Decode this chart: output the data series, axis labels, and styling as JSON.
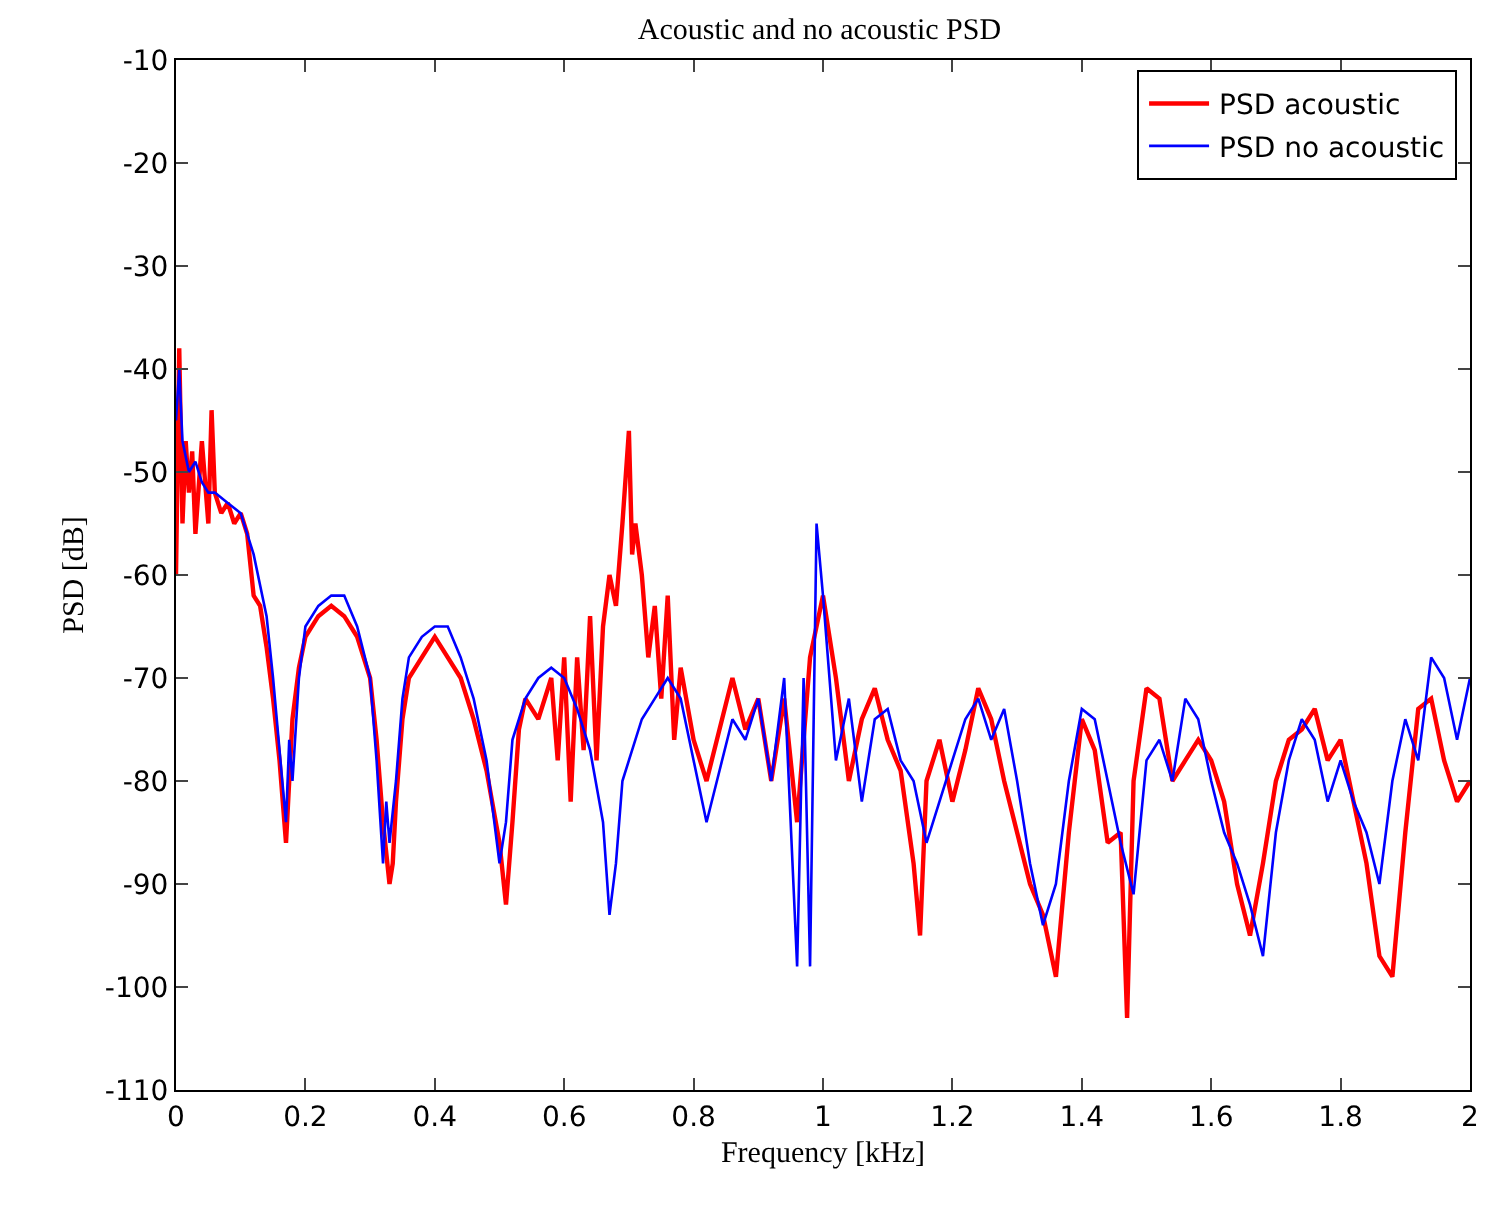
{
  "chart_data": {
    "type": "line",
    "title": "Acoustic and no acoustic PSD",
    "xlabel": "Frequency [kHz]",
    "ylabel": "PSD [dB]",
    "xlim": [
      0,
      2
    ],
    "xticks": [
      0,
      0.2,
      0.4,
      0.6,
      0.8,
      1,
      1.2,
      1.4,
      1.6,
      1.8,
      2
    ],
    "ylim": [
      -110,
      -10
    ],
    "yticks": [
      -110,
      -100,
      -90,
      -80,
      -70,
      -60,
      -50,
      -40,
      -30,
      -20,
      -10
    ],
    "legend": "top right",
    "line_style": "solid",
    "marker": "none",
    "series": [
      {
        "name": "PSD acoustic",
        "color": "#ff0000",
        "x": [
          0,
          0.005,
          0.01,
          0.015,
          0.02,
          0.025,
          0.03,
          0.04,
          0.05,
          0.055,
          0.06,
          0.07,
          0.08,
          0.09,
          0.1,
          0.11,
          0.12,
          0.13,
          0.14,
          0.15,
          0.16,
          0.17,
          0.175,
          0.18,
          0.19,
          0.2,
          0.22,
          0.24,
          0.26,
          0.28,
          0.3,
          0.31,
          0.32,
          0.33,
          0.335,
          0.34,
          0.35,
          0.36,
          0.38,
          0.4,
          0.42,
          0.44,
          0.46,
          0.48,
          0.5,
          0.51,
          0.52,
          0.53,
          0.54,
          0.56,
          0.58,
          0.59,
          0.6,
          0.61,
          0.62,
          0.63,
          0.64,
          0.65,
          0.66,
          0.67,
          0.68,
          0.69,
          0.7,
          0.705,
          0.71,
          0.72,
          0.73,
          0.74,
          0.75,
          0.76,
          0.77,
          0.78,
          0.8,
          0.82,
          0.84,
          0.86,
          0.88,
          0.9,
          0.92,
          0.94,
          0.96,
          0.98,
          1.0,
          1.02,
          1.04,
          1.06,
          1.08,
          1.1,
          1.12,
          1.14,
          1.15,
          1.16,
          1.18,
          1.2,
          1.22,
          1.24,
          1.26,
          1.28,
          1.3,
          1.32,
          1.34,
          1.36,
          1.38,
          1.4,
          1.42,
          1.44,
          1.46,
          1.47,
          1.48,
          1.5,
          1.52,
          1.54,
          1.56,
          1.58,
          1.6,
          1.62,
          1.64,
          1.66,
          1.68,
          1.7,
          1.72,
          1.74,
          1.76,
          1.78,
          1.8,
          1.82,
          1.84,
          1.86,
          1.88,
          1.9,
          1.92,
          1.94,
          1.96,
          1.98,
          2.0
        ],
        "values": [
          -60,
          -38,
          -55,
          -47,
          -52,
          -48,
          -56,
          -47,
          -55,
          -44,
          -52,
          -54,
          -53,
          -55,
          -54,
          -56,
          -62,
          -63,
          -67,
          -72,
          -78,
          -86,
          -80,
          -74,
          -69,
          -66,
          -64,
          -63,
          -64,
          -66,
          -70,
          -76,
          -84,
          -90,
          -88,
          -82,
          -74,
          -70,
          -68,
          -66,
          -68,
          -70,
          -74,
          -79,
          -86,
          -92,
          -84,
          -75,
          -72,
          -74,
          -70,
          -78,
          -68,
          -82,
          -68,
          -77,
          -64,
          -78,
          -65,
          -60,
          -63,
          -55,
          -46,
          -58,
          -55,
          -60,
          -68,
          -63,
          -72,
          -62,
          -76,
          -69,
          -76,
          -80,
          -75,
          -70,
          -75,
          -72,
          -80,
          -72,
          -84,
          -68,
          -62,
          -70,
          -80,
          -74,
          -71,
          -76,
          -79,
          -88,
          -95,
          -80,
          -76,
          -82,
          -77,
          -71,
          -74,
          -80,
          -85,
          -90,
          -93,
          -99,
          -85,
          -74,
          -77,
          -86,
          -85,
          -103,
          -80,
          -71,
          -72,
          -80,
          -78,
          -76,
          -78,
          -82,
          -90,
          -95,
          -88,
          -80,
          -76,
          -75,
          -73,
          -78,
          -76,
          -82,
          -88,
          -97,
          -99,
          -85,
          -73,
          -72,
          -78,
          -82,
          -80
        ]
      },
      {
        "name": "PSD no acoustic",
        "color": "#0000ff",
        "x": [
          0,
          0.005,
          0.01,
          0.02,
          0.03,
          0.04,
          0.05,
          0.06,
          0.08,
          0.1,
          0.12,
          0.14,
          0.15,
          0.16,
          0.17,
          0.175,
          0.18,
          0.19,
          0.2,
          0.22,
          0.24,
          0.26,
          0.28,
          0.3,
          0.31,
          0.32,
          0.325,
          0.33,
          0.34,
          0.35,
          0.36,
          0.38,
          0.4,
          0.42,
          0.44,
          0.46,
          0.48,
          0.5,
          0.51,
          0.52,
          0.54,
          0.56,
          0.58,
          0.6,
          0.62,
          0.64,
          0.66,
          0.67,
          0.68,
          0.69,
          0.7,
          0.72,
          0.74,
          0.76,
          0.78,
          0.8,
          0.82,
          0.84,
          0.86,
          0.88,
          0.9,
          0.92,
          0.94,
          0.96,
          0.97,
          0.98,
          0.99,
          1.0,
          1.02,
          1.04,
          1.06,
          1.08,
          1.1,
          1.12,
          1.14,
          1.16,
          1.18,
          1.2,
          1.22,
          1.24,
          1.26,
          1.28,
          1.3,
          1.32,
          1.34,
          1.36,
          1.38,
          1.4,
          1.42,
          1.44,
          1.46,
          1.48,
          1.5,
          1.52,
          1.54,
          1.56,
          1.58,
          1.6,
          1.62,
          1.64,
          1.66,
          1.68,
          1.7,
          1.72,
          1.74,
          1.76,
          1.78,
          1.8,
          1.82,
          1.84,
          1.86,
          1.88,
          1.9,
          1.92,
          1.94,
          1.96,
          1.98,
          2.0
        ],
        "values": [
          -45,
          -40,
          -47,
          -50,
          -49,
          -51,
          -52,
          -52,
          -53,
          -54,
          -58,
          -64,
          -70,
          -77,
          -84,
          -76,
          -80,
          -70,
          -65,
          -63,
          -62,
          -62,
          -65,
          -70,
          -78,
          -88,
          -82,
          -86,
          -80,
          -72,
          -68,
          -66,
          -65,
          -65,
          -68,
          -72,
          -78,
          -88,
          -84,
          -76,
          -72,
          -70,
          -69,
          -70,
          -73,
          -77,
          -84,
          -93,
          -88,
          -80,
          -78,
          -74,
          -72,
          -70,
          -72,
          -78,
          -84,
          -79,
          -74,
          -76,
          -72,
          -80,
          -70,
          -98,
          -70,
          -98,
          -55,
          -62,
          -78,
          -72,
          -82,
          -74,
          -73,
          -78,
          -80,
          -86,
          -82,
          -78,
          -74,
          -72,
          -76,
          -73,
          -80,
          -88,
          -94,
          -90,
          -80,
          -73,
          -74,
          -80,
          -86,
          -91,
          -78,
          -76,
          -80,
          -72,
          -74,
          -80,
          -85,
          -88,
          -92,
          -97,
          -85,
          -78,
          -74,
          -76,
          -82,
          -78,
          -82,
          -85,
          -90,
          -80,
          -74,
          -78,
          -68,
          -70,
          -76,
          -70
        ]
      }
    ]
  }
}
